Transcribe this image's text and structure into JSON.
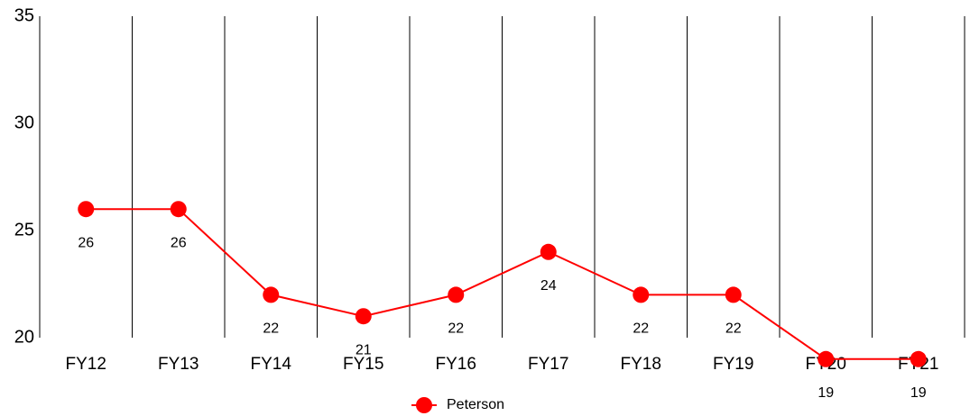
{
  "chart_data": {
    "type": "line",
    "categories": [
      "FY12",
      "FY13",
      "FY14",
      "FY15",
      "FY16",
      "FY17",
      "FY18",
      "FY19",
      "FY20",
      "FY21"
    ],
    "series": [
      {
        "name": "Peterson",
        "color": "#ff0000",
        "values": [
          26,
          26,
          22,
          21,
          22,
          24,
          22,
          22,
          19,
          19
        ]
      }
    ],
    "ylim": [
      20,
      35
    ],
    "yticks": [
      20,
      25,
      30,
      35
    ],
    "grid": true,
    "legend": "bottom"
  }
}
